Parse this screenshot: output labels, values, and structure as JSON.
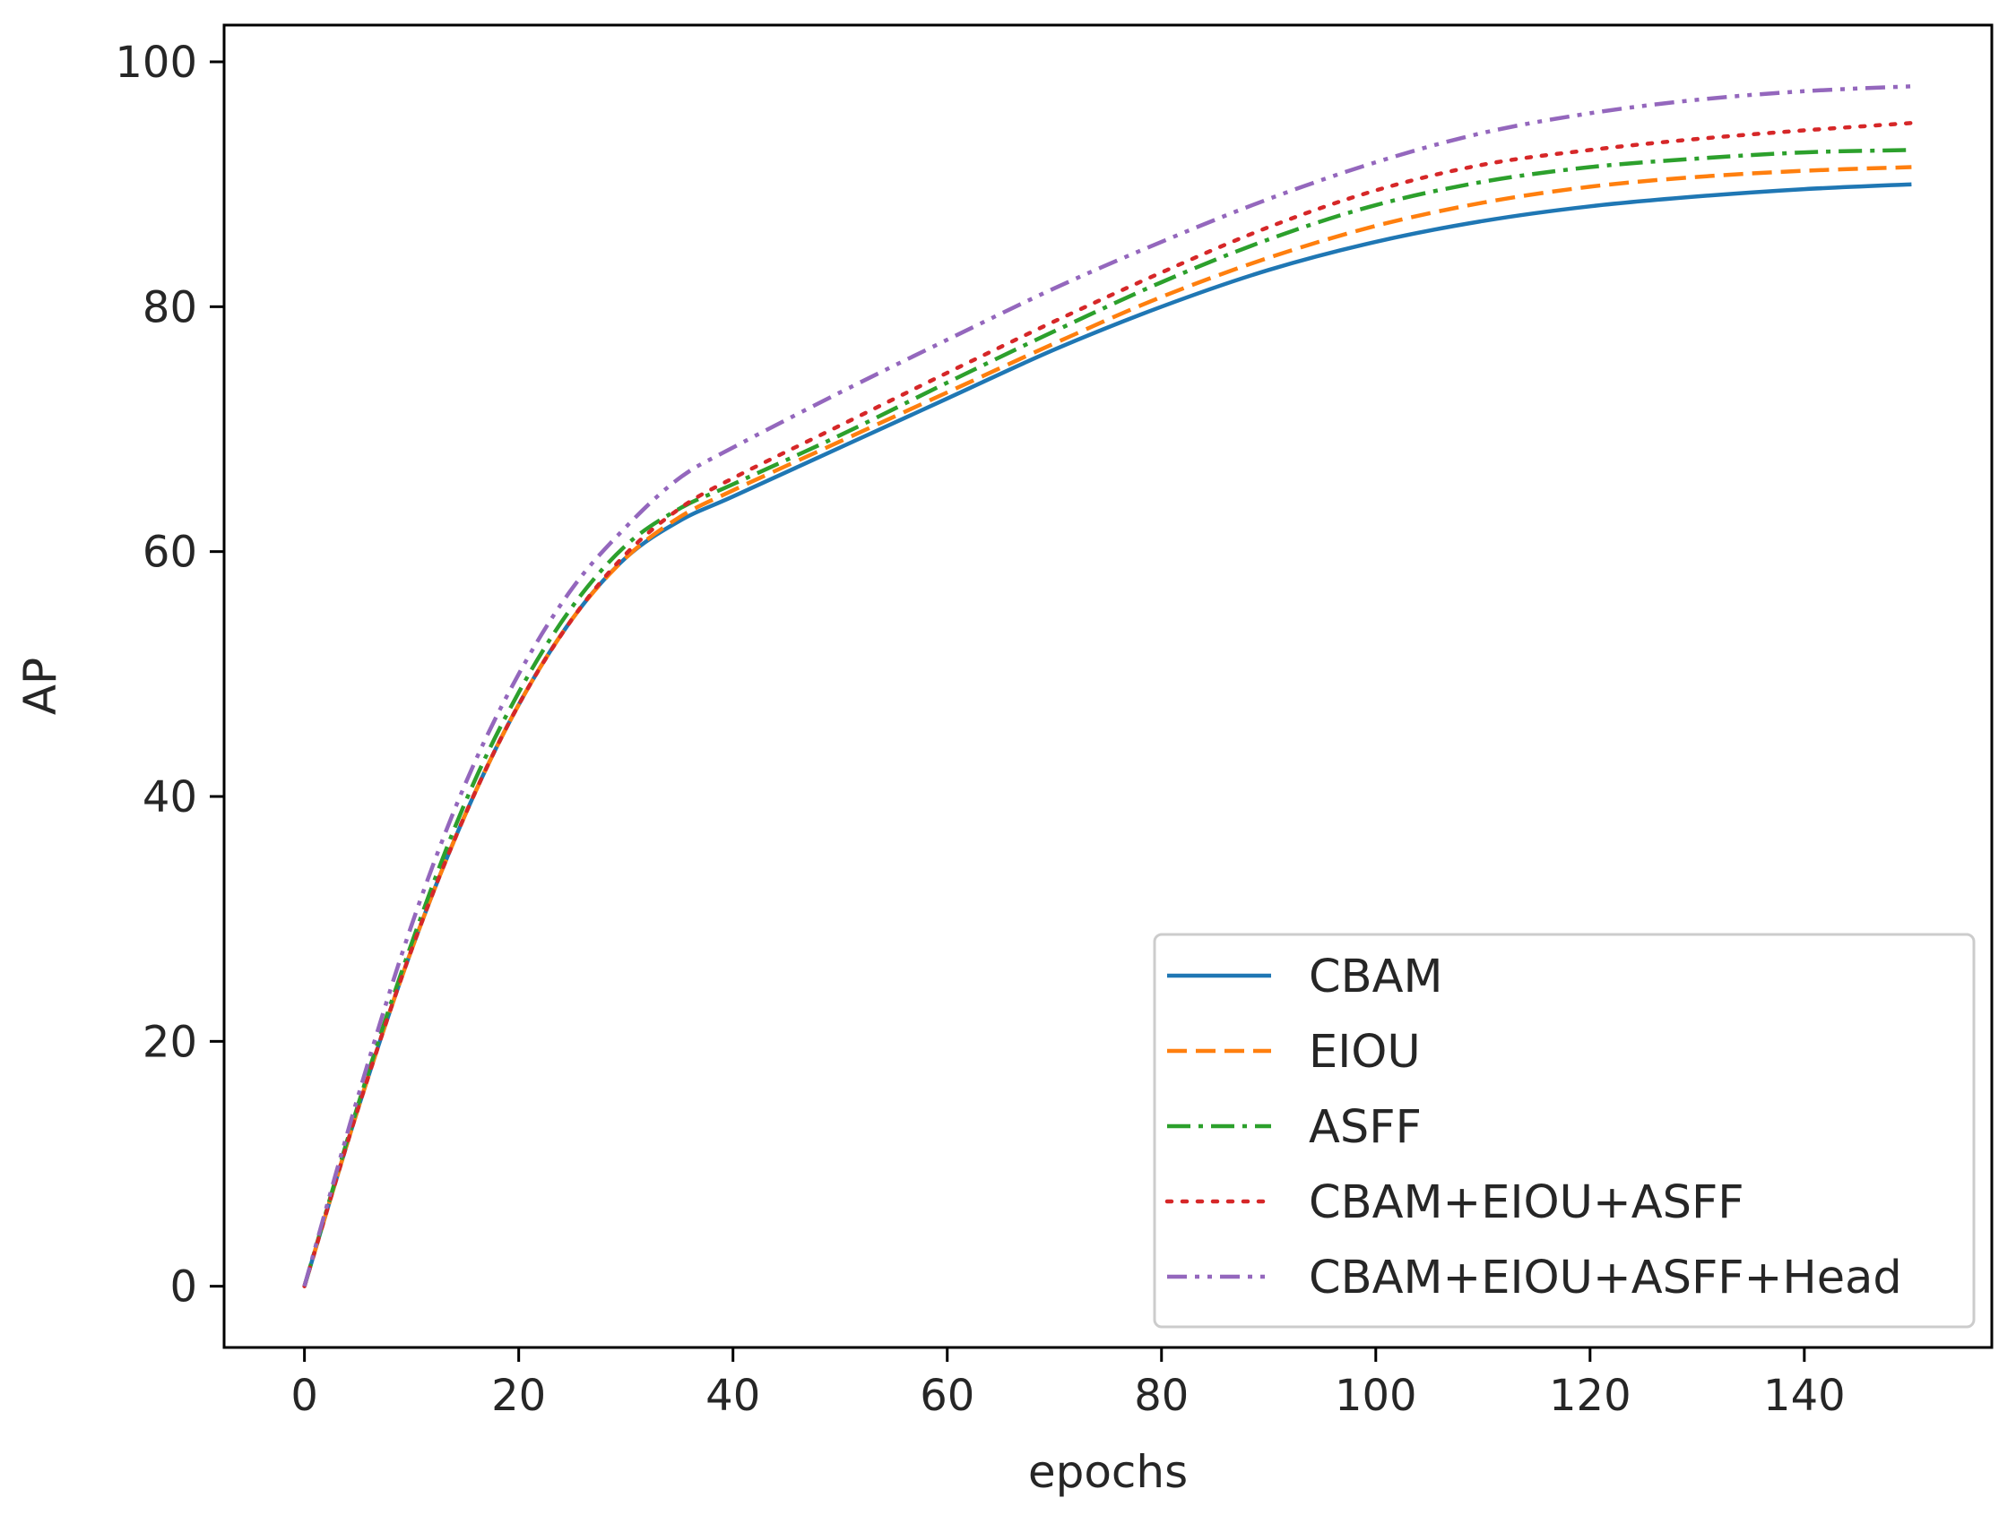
{
  "chart_data": {
    "type": "line",
    "xlabel": "epochs",
    "ylabel": "AP",
    "xlim": [
      -7.5,
      157.5
    ],
    "ylim": [
      -5,
      103
    ],
    "xticks": [
      0,
      20,
      40,
      60,
      80,
      100,
      120,
      140
    ],
    "yticks": [
      0,
      20,
      40,
      60,
      80,
      100
    ],
    "grid": false,
    "legend_position": "lower-right",
    "x": [
      0,
      5,
      10,
      15,
      20,
      25,
      30,
      35,
      40,
      50,
      60,
      70,
      80,
      90,
      100,
      110,
      120,
      130,
      140,
      150
    ],
    "series": [
      {
        "name": "CBAM",
        "color": "#1f77b4",
        "style": "solid",
        "values": [
          0,
          14.5,
          27.5,
          38.5,
          47.5,
          54.5,
          59.5,
          62.5,
          64.5,
          68.5,
          72.5,
          76.5,
          80,
          83,
          85.3,
          87,
          88.2,
          89,
          89.6,
          90
        ]
      },
      {
        "name": "EIOU",
        "color": "#ff7f0e",
        "style": "dashed",
        "values": [
          0,
          14.5,
          27.5,
          38.5,
          47.5,
          54.5,
          59.5,
          62.8,
          65,
          69,
          73,
          77,
          80.8,
          84,
          86.6,
          88.5,
          89.8,
          90.6,
          91.1,
          91.4
        ]
      },
      {
        "name": "ASFF",
        "color": "#2ca02c",
        "style": "dashdot",
        "values": [
          0,
          14.8,
          28,
          39.5,
          48.5,
          55.5,
          60.5,
          63.5,
          65.5,
          69.5,
          73.8,
          78,
          82,
          85.5,
          88.3,
          90.2,
          91.4,
          92.1,
          92.6,
          92.8
        ]
      },
      {
        "name": "CBAM+EIOU+ASFF",
        "color": "#d62728",
        "style": "dotted",
        "values": [
          0,
          14.5,
          27.5,
          38.5,
          47.5,
          54.5,
          59.8,
          63.5,
          66,
          70.3,
          74.6,
          78.8,
          82.8,
          86.5,
          89.5,
          91.6,
          92.8,
          93.7,
          94.4,
          95
        ]
      },
      {
        "name": "CBAM+EIOU+ASFF+Head",
        "color": "#9467bd",
        "style": "dashdotdot",
        "values": [
          0,
          15.5,
          29.5,
          41,
          50,
          57,
          62,
          66,
          68.5,
          73,
          77.3,
          81.5,
          85.3,
          88.8,
          91.8,
          94.2,
          95.8,
          96.9,
          97.6,
          98
        ]
      }
    ]
  }
}
